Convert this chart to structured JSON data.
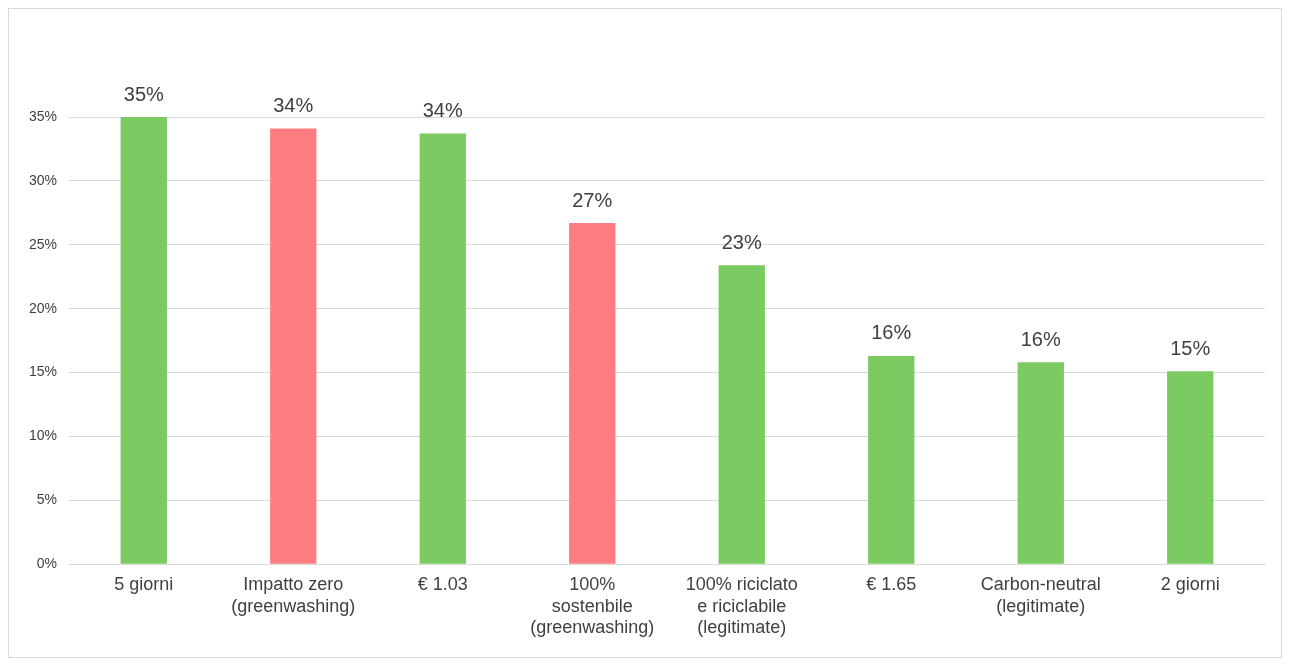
{
  "chart_data": {
    "type": "bar",
    "categories": [
      "5 giorni",
      "Impatto zero\n(greenwashing)",
      "€ 1.03",
      "100%\nsostenbile\n(greenwashing)",
      "100% riciclato\ne riciclabile\n(legitimate)",
      "€ 1.65",
      "Carbon-neutral\n(legitimate)",
      "2 giorni"
    ],
    "values": [
      35,
      34.1,
      33.7,
      26.7,
      23.4,
      16.3,
      15.8,
      15.1
    ],
    "colors": [
      "#7cca62",
      "#ff7c80",
      "#7cca62",
      "#ff7c80",
      "#7cca62",
      "#7cca62",
      "#7cca62",
      "#7cca62"
    ],
    "value_labels": [
      "35%",
      "34%",
      "34%",
      "27%",
      "23%",
      "16%",
      "16%",
      "15%"
    ],
    "ylim": [
      0,
      35
    ],
    "yticks": [
      {
        "value": 0,
        "label": "0%"
      },
      {
        "value": 5,
        "label": "5%"
      },
      {
        "value": 10,
        "label": "10%"
      },
      {
        "value": 15,
        "label": "15%"
      },
      {
        "value": 20,
        "label": "20%"
      },
      {
        "value": 25,
        "label": "25%"
      },
      {
        "value": 30,
        "label": "30%"
      },
      {
        "value": 35,
        "label": "35%"
      }
    ],
    "grid": "y",
    "legend": false
  }
}
